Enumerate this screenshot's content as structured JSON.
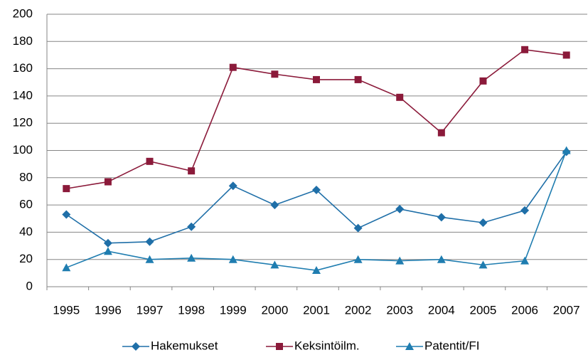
{
  "chart_data": {
    "type": "line",
    "categories": [
      "1995",
      "1996",
      "1997",
      "1998",
      "1999",
      "2000",
      "2001",
      "2002",
      "2003",
      "2004",
      "2005",
      "2006",
      "2007"
    ],
    "series": [
      {
        "name": "Hakemukset",
        "color": "#1f6fa8",
        "marker": "diamond",
        "values": [
          53,
          32,
          33,
          44,
          74,
          60,
          71,
          43,
          57,
          51,
          47,
          56,
          99
        ]
      },
      {
        "name": "Keksintöilm.",
        "color": "#8b1a3a",
        "marker": "square",
        "values": [
          72,
          77,
          92,
          85,
          161,
          156,
          152,
          152,
          139,
          113,
          151,
          174,
          170
        ]
      },
      {
        "name": "Patentit/FI",
        "color": "#1f7db0",
        "marker": "triangle",
        "values": [
          14,
          26,
          20,
          21,
          20,
          16,
          12,
          20,
          19,
          20,
          16,
          19,
          100
        ]
      }
    ],
    "ylim": [
      0,
      200
    ],
    "yticks": [
      0,
      20,
      40,
      60,
      80,
      100,
      120,
      140,
      160,
      180,
      200
    ],
    "grid": true,
    "legend": "bottom"
  }
}
